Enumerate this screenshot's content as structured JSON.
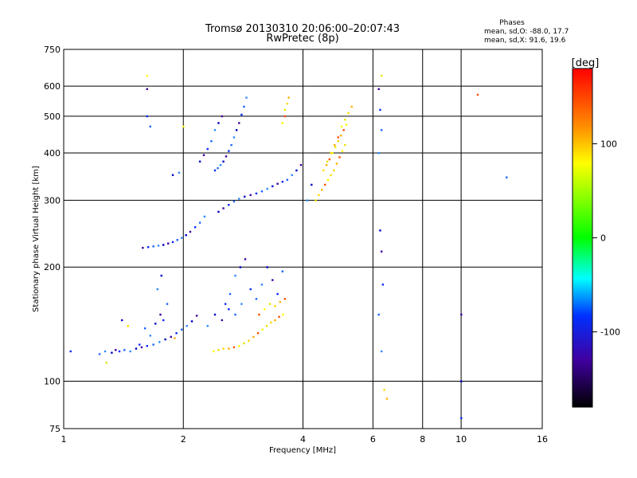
{
  "chart_data": {
    "type": "scatter",
    "title": "Tromsø 20130310 20:06:00–20:07:43",
    "subtitle": "RwPretec (8p)",
    "xlabel": "Frequency [MHz]",
    "ylabel": "Stationary phase Virtual Height [km]",
    "x_scale": "log",
    "y_scale": "log",
    "xlim": [
      1,
      16
    ],
    "ylim": [
      75,
      750
    ],
    "x_ticks": [
      1,
      2,
      4,
      6,
      8,
      10,
      16
    ],
    "y_ticks": [
      75,
      100,
      200,
      300,
      400,
      500,
      600,
      750
    ],
    "grid": true,
    "stats": {
      "heading": "Phases",
      "line_o": "mean, sd,O: -88.0, 17.7",
      "line_x": "mean, sd,X:  91.6, 19.6"
    },
    "colorbar": {
      "label": "[deg]",
      "range": [
        -180,
        180
      ],
      "ticks": [
        100,
        0,
        -100
      ],
      "tick_labels": [
        "100",
        "0",
        "-100"
      ]
    },
    "series": [
      {
        "values": [
          [
            1.04,
            120
          ],
          [
            1.23,
            118
          ],
          [
            1.27,
            120
          ],
          [
            1.32,
            119
          ],
          [
            1.35,
            121
          ],
          [
            1.38,
            120
          ],
          [
            1.42,
            121
          ],
          [
            1.47,
            120
          ],
          [
            1.52,
            122
          ],
          [
            1.57,
            123
          ],
          [
            1.62,
            124
          ],
          [
            1.68,
            125
          ],
          [
            1.74,
            127
          ],
          [
            1.8,
            129
          ],
          [
            1.86,
            131
          ],
          [
            1.92,
            134
          ],
          [
            1.98,
            137
          ],
          [
            2.04,
            140
          ],
          [
            2.1,
            144
          ],
          [
            2.16,
            149
          ],
          [
            1.55,
            125
          ],
          [
            1.6,
            138
          ],
          [
            1.65,
            132
          ],
          [
            1.7,
            142
          ],
          [
            1.75,
            150
          ],
          [
            1.78,
            145
          ],
          [
            1.82,
            160
          ],
          [
            1.72,
            175
          ],
          [
            1.76,
            190
          ],
          [
            1.58,
            225
          ],
          [
            1.63,
            226
          ],
          [
            1.68,
            227
          ],
          [
            1.73,
            228
          ],
          [
            1.78,
            229
          ],
          [
            1.83,
            231
          ],
          [
            1.88,
            233
          ],
          [
            1.93,
            236
          ],
          [
            1.98,
            239
          ],
          [
            2.03,
            243
          ],
          [
            2.08,
            248
          ],
          [
            2.14,
            255
          ],
          [
            2.2,
            262
          ],
          [
            2.26,
            272
          ],
          [
            2.45,
            280
          ],
          [
            2.52,
            286
          ],
          [
            2.6,
            292
          ],
          [
            2.68,
            298
          ],
          [
            2.76,
            303
          ],
          [
            2.85,
            307
          ],
          [
            2.95,
            310
          ],
          [
            3.05,
            313
          ],
          [
            3.15,
            317
          ],
          [
            3.25,
            322
          ],
          [
            3.35,
            327
          ],
          [
            3.45,
            332
          ],
          [
            3.55,
            336
          ],
          [
            3.65,
            340
          ],
          [
            3.75,
            350
          ],
          [
            3.85,
            360
          ],
          [
            3.95,
            372
          ],
          [
            2.4,
            360
          ],
          [
            2.44,
            365
          ],
          [
            2.48,
            372
          ],
          [
            2.52,
            380
          ],
          [
            2.56,
            392
          ],
          [
            2.6,
            405
          ],
          [
            2.64,
            420
          ],
          [
            2.68,
            440
          ],
          [
            2.72,
            460
          ],
          [
            2.76,
            480
          ],
          [
            2.8,
            505
          ],
          [
            2.84,
            530
          ],
          [
            2.88,
            560
          ],
          [
            2.2,
            380
          ],
          [
            2.25,
            395
          ],
          [
            2.3,
            410
          ],
          [
            2.35,
            430
          ],
          [
            2.4,
            460
          ],
          [
            2.45,
            480
          ],
          [
            2.5,
            500
          ],
          [
            2.55,
            160
          ],
          [
            2.62,
            170
          ],
          [
            2.7,
            190
          ],
          [
            2.78,
            200
          ],
          [
            2.86,
            210
          ],
          [
            2.95,
            175
          ],
          [
            3.05,
            165
          ],
          [
            3.15,
            180
          ],
          [
            3.25,
            200
          ],
          [
            3.35,
            185
          ],
          [
            3.45,
            170
          ],
          [
            3.55,
            195
          ],
          [
            2.3,
            140
          ],
          [
            2.4,
            150
          ],
          [
            2.5,
            145
          ],
          [
            2.6,
            155
          ],
          [
            2.7,
            150
          ],
          [
            2.8,
            160
          ],
          [
            1.4,
            145
          ],
          [
            1.62,
            590
          ],
          [
            1.62,
            500
          ],
          [
            1.65,
            470
          ],
          [
            1.95,
            355
          ],
          [
            1.88,
            350
          ],
          [
            6.2,
            590
          ],
          [
            6.25,
            520
          ],
          [
            6.3,
            460
          ],
          [
            6.2,
            400
          ],
          [
            6.25,
            250
          ],
          [
            6.3,
            220
          ],
          [
            6.35,
            180
          ],
          [
            6.2,
            150
          ],
          [
            6.3,
            120
          ],
          [
            10,
            100
          ],
          [
            10,
            150
          ],
          [
            10,
            80
          ],
          [
            13,
            345
          ],
          [
            4.1,
            300
          ],
          [
            4.2,
            330
          ]
        ]
      },
      {
        "values": [
          [
            2.38,
            120
          ],
          [
            2.45,
            121
          ],
          [
            2.52,
            122
          ],
          [
            2.6,
            122
          ],
          [
            2.68,
            123
          ],
          [
            2.76,
            124
          ],
          [
            2.84,
            126
          ],
          [
            2.92,
            128
          ],
          [
            3.0,
            131
          ],
          [
            3.08,
            134
          ],
          [
            3.16,
            137
          ],
          [
            3.24,
            140
          ],
          [
            3.32,
            143
          ],
          [
            3.4,
            145
          ],
          [
            3.48,
            148
          ],
          [
            3.56,
            150
          ],
          [
            3.6,
            520
          ],
          [
            3.65,
            540
          ],
          [
            3.68,
            560
          ],
          [
            3.6,
            500
          ],
          [
            3.55,
            480
          ],
          [
            4.3,
            300
          ],
          [
            4.38,
            310
          ],
          [
            4.46,
            320
          ],
          [
            4.54,
            330
          ],
          [
            4.62,
            340
          ],
          [
            4.7,
            350
          ],
          [
            4.78,
            360
          ],
          [
            4.86,
            375
          ],
          [
            4.94,
            390
          ],
          [
            5.02,
            405
          ],
          [
            5.1,
            420
          ],
          [
            4.5,
            360
          ],
          [
            4.58,
            372
          ],
          [
            4.66,
            385
          ],
          [
            4.74,
            400
          ],
          [
            4.82,
            415
          ],
          [
            4.9,
            430
          ],
          [
            4.98,
            445
          ],
          [
            5.06,
            460
          ],
          [
            5.14,
            475
          ],
          [
            4.6,
            380
          ],
          [
            4.7,
            400
          ],
          [
            4.8,
            420
          ],
          [
            4.9,
            440
          ],
          [
            5.0,
            470
          ],
          [
            5.1,
            490
          ],
          [
            5.2,
            510
          ],
          [
            5.3,
            530
          ],
          [
            3.1,
            150
          ],
          [
            3.2,
            155
          ],
          [
            3.3,
            160
          ],
          [
            3.4,
            158
          ],
          [
            3.5,
            162
          ],
          [
            3.6,
            165
          ],
          [
            1.62,
            640
          ],
          [
            6.3,
            640
          ],
          [
            6.4,
            95
          ],
          [
            6.5,
            90
          ],
          [
            11,
            570
          ],
          [
            2.0,
            470
          ],
          [
            1.28,
            112
          ],
          [
            1.45,
            140
          ],
          [
            1.9,
            130
          ]
        ]
      }
    ]
  }
}
